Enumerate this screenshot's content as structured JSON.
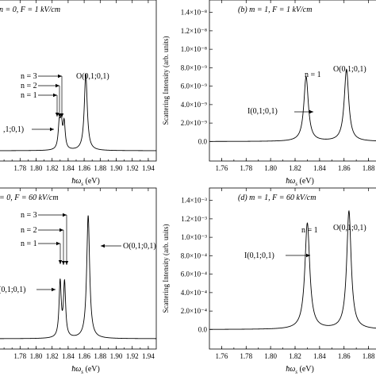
{
  "figure": {
    "panels": [
      {
        "id": "a",
        "label": "n = 0,  F = 1 kV/cm",
        "xlabel": "ħω_s (eV)",
        "xlabel_main": "ħω",
        "xlabel_sub": "s",
        "xlabel_unit": " (eV)",
        "ylabel": "",
        "annotations": [
          {
            "text": "n = 3",
            "label_key": "n3"
          },
          {
            "text": "n = 2",
            "label_key": "n2"
          },
          {
            "text": "n = 1",
            "label_key": "n1"
          },
          {
            "text": "O(0,1;0,1)",
            "label_key": "O"
          },
          {
            "text": ",1;0,1)",
            "label_key": "I"
          }
        ]
      },
      {
        "id": "b",
        "label": "(b)  m = 1,  F = 1 kV/cm",
        "xlabel": "ħω_s (eV)",
        "xlabel_main": "ħω",
        "xlabel_sub": "s",
        "xlabel_unit": " (eV)",
        "ylabel": "Scattering Intensity (arb. units)",
        "annotations": [
          {
            "text": "n = 1",
            "label_key": "n1"
          },
          {
            "text": "O(0,1;0,1)",
            "label_key": "O"
          },
          {
            "text": "I(0,1;0,1)",
            "label_key": "I"
          }
        ]
      },
      {
        "id": "c",
        "label": "= 0,  F = 60 kV/cm",
        "xlabel": "ħω_s (eV)",
        "xlabel_main": "ħω",
        "xlabel_sub": "s",
        "xlabel_unit": " (eV)",
        "ylabel": "",
        "annotations": [
          {
            "text": "n = 3",
            "label_key": "n3"
          },
          {
            "text": "n = 2",
            "label_key": "n2"
          },
          {
            "text": "n = 1",
            "label_key": "n1"
          },
          {
            "text": "O(0,1;0,1)",
            "label_key": "O"
          },
          {
            "text": "(0,1;0,1)",
            "label_key": "I"
          }
        ]
      },
      {
        "id": "d",
        "label": "(d)  m = 1,  F = 60 kV/cm",
        "xlabel": "ħω_s (eV)",
        "xlabel_main": "ħω",
        "xlabel_sub": "s",
        "xlabel_unit": " (eV)",
        "ylabel": "Scattering Intensity (arb. units)",
        "annotations": [
          {
            "text": "n = 1",
            "label_key": "n1"
          },
          {
            "text": "O(0,1;0,1)",
            "label_key": "O"
          },
          {
            "text": "I(0,1;0,1)",
            "label_key": "I"
          }
        ]
      }
    ]
  },
  "chart_data": [
    {
      "panel": "a",
      "type": "line",
      "title": "",
      "xlabel": "ħω_s (eV)",
      "ylabel": "",
      "xlim": [
        1.75,
        1.95
      ],
      "ylim": [
        0,
        1.5
      ],
      "x_ticks": [
        "1.78",
        "1.80",
        "1.82",
        "1.84",
        "1.86",
        "1.88",
        "1.90",
        "1.92",
        "1.94"
      ],
      "y_ticks": [],
      "series": [
        {
          "peaks": [
            {
              "x": 1.829,
              "height": 0.26,
              "width": 0.0017
            },
            {
              "x": 1.8315,
              "height": 0.24,
              "width": 0.0014
            },
            {
              "x": 1.835,
              "height": 0.27,
              "width": 0.0016
            },
            {
              "x": 1.862,
              "height": 0.78,
              "width": 0.0022
            }
          ],
          "baseline": 0.06
        }
      ],
      "grid": false
    },
    {
      "panel": "b",
      "type": "line",
      "title": "",
      "xlabel": "ħω_s (eV)",
      "ylabel": "Scattering Intensity (arb. units)",
      "xlim": [
        1.75,
        1.89
      ],
      "ylim": [
        -1e-09,
        1.5e-08
      ],
      "x_ticks": [
        "1.76",
        "1.78",
        "1.80",
        "1.82",
        "1.84",
        "1.86",
        "1.88"
      ],
      "y_ticks": [
        "0.0",
        "2.0×10⁻⁹",
        "4.0×10⁻⁹",
        "6.0×10⁻⁹",
        "8.0×10⁻⁹",
        "1.0×10⁻⁸",
        "1.2×10⁻⁸",
        "1.4×10⁻⁸"
      ],
      "y_tick_values": [
        0,
        2e-09,
        4e-09,
        6e-09,
        8e-09,
        1e-08,
        1.2e-08,
        1.4e-08
      ],
      "series": [
        {
          "peaks": [
            {
              "x": 1.829,
              "height": 7e-09,
              "width": 0.0022
            },
            {
              "x": 1.862,
              "height": 7.8e-09,
              "width": 0.0022
            }
          ],
          "baseline": 0
        }
      ],
      "grid": false
    },
    {
      "panel": "c",
      "type": "line",
      "title": "",
      "xlabel": "ħω_s (eV)",
      "ylabel": "",
      "xlim": [
        1.75,
        1.95
      ],
      "ylim": [
        0,
        1.2
      ],
      "x_ticks": [
        "1.78",
        "1.80",
        "1.82",
        "1.84",
        "1.86",
        "1.88",
        "1.90",
        "1.92",
        "1.94"
      ],
      "y_ticks": [],
      "series": [
        {
          "peaks": [
            {
              "x": 1.83,
              "height": 0.45,
              "width": 0.0016
            },
            {
              "x": 1.8355,
              "height": 0.44,
              "width": 0.0016
            },
            {
              "x": 1.865,
              "height": 1.0,
              "width": 0.0022
            }
          ],
          "baseline": 0.03
        }
      ],
      "grid": false
    },
    {
      "panel": "d",
      "type": "line",
      "title": "",
      "xlabel": "ħω_s (eV)",
      "ylabel": "Scattering Intensity (arb. units)",
      "xlim": [
        1.75,
        1.89
      ],
      "ylim": [
        -0.0001,
        0.0015
      ],
      "x_ticks": [
        "1.76",
        "1.78",
        "1.80",
        "1.82",
        "1.84",
        "1.86",
        "1.88"
      ],
      "y_ticks": [
        "0.0",
        "2.0×10⁻⁴",
        "4.0×10⁻⁴",
        "6.0×10⁻⁴",
        "8.0×10⁻⁴",
        "1.0×10⁻³",
        "1.2×10⁻³",
        "1.4×10⁻³"
      ],
      "y_tick_values": [
        0,
        0.0002,
        0.0004,
        0.0006,
        0.0008,
        0.001,
        0.0012,
        0.0014
      ],
      "series": [
        {
          "peaks": [
            {
              "x": 1.83,
              "height": 0.00115,
              "width": 0.0024
            },
            {
              "x": 1.864,
              "height": 0.00128,
              "width": 0.0022
            }
          ],
          "baseline": 0
        }
      ],
      "grid": false
    }
  ]
}
